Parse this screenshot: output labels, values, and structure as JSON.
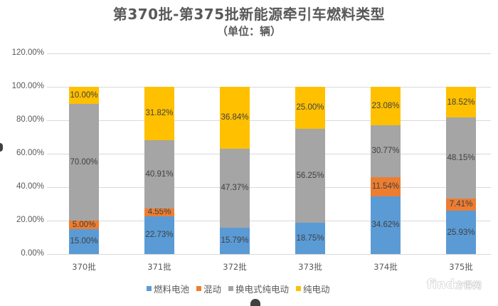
{
  "header": {
    "title": "第370批-第375批新能源牵引车燃料类型",
    "subtitle": "（单位：辆）"
  },
  "axis": {
    "y_ticks": [
      "120.00%",
      "100.00%",
      "80.00%",
      "60.00%",
      "40.00%",
      "20.00%",
      "0.00%"
    ]
  },
  "legend": {
    "items": [
      {
        "label": "燃料电池",
        "color": "#5b9bd5"
      },
      {
        "label": "混动",
        "color": "#ed7d31"
      },
      {
        "label": "换电式纯电动",
        "color": "#a5a5a5"
      },
      {
        "label": "纯电动",
        "color": "#ffc000"
      }
    ]
  },
  "watermark": {
    "text": "find",
    "suffix": "方得网"
  },
  "bars": [
    {
      "label": "370批",
      "segs": [
        "15.00%",
        "5.00%",
        "70.00%",
        "10.00%"
      ]
    },
    {
      "label": "371批",
      "segs": [
        "22.73%",
        "4.55%",
        "40.91%",
        "31.82%"
      ]
    },
    {
      "label": "372批",
      "segs": [
        "15.79%",
        "",
        "47.37%",
        "36.84%"
      ]
    },
    {
      "label": "373批",
      "segs": [
        "18.75%",
        "",
        "56.25%",
        "25.00%"
      ]
    },
    {
      "label": "374批",
      "segs": [
        "34.62%",
        "11.54%",
        "30.77%",
        "23.08%"
      ]
    },
    {
      "label": "375批",
      "segs": [
        "25.93%",
        "7.41%",
        "48.15%",
        "18.52%"
      ]
    }
  ],
  "chart_data": {
    "type": "bar",
    "stacked": true,
    "title": "第370批-第375批新能源牵引车燃料类型",
    "subtitle": "（单位：辆）",
    "xlabel": "",
    "ylabel": "",
    "ylim": [
      0,
      120
    ],
    "y_ticks": [
      0,
      20,
      40,
      60,
      80,
      100,
      120
    ],
    "y_tick_format": "percent_2dp",
    "grid": true,
    "legend_position": "bottom",
    "categories": [
      "370批",
      "371批",
      "372批",
      "373批",
      "374批",
      "375批"
    ],
    "series": [
      {
        "name": "燃料电池",
        "color": "#5b9bd5",
        "values": [
          15.0,
          22.73,
          15.79,
          18.75,
          34.62,
          25.93
        ]
      },
      {
        "name": "混动",
        "color": "#ed7d31",
        "values": [
          5.0,
          4.55,
          0,
          0,
          11.54,
          7.41
        ]
      },
      {
        "name": "换电式纯电动",
        "color": "#a5a5a5",
        "values": [
          70.0,
          40.91,
          47.37,
          56.25,
          30.77,
          48.15
        ]
      },
      {
        "name": "纯电动",
        "color": "#ffc000",
        "values": [
          10.0,
          31.82,
          36.84,
          25.0,
          23.08,
          18.52
        ]
      }
    ]
  }
}
